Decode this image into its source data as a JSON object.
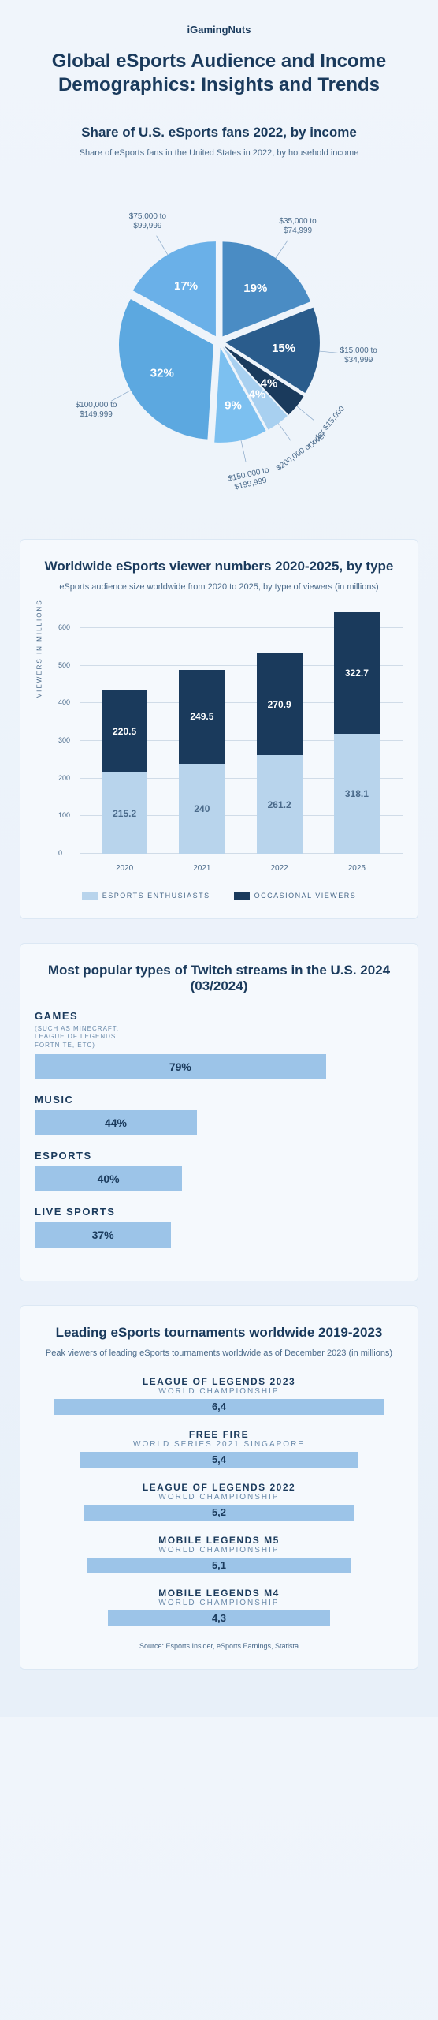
{
  "brand": "iGamingNuts",
  "main_title": "Global eSports Audience and Income Demographics: Insights and Trends",
  "pie": {
    "title": "Share of U.S. eSports fans 2022, by income",
    "subtitle": "Share of eSports fans in the United States in 2022, by household income",
    "slices": [
      {
        "value": 19,
        "label": "$35,000 to $74,999",
        "color": "#4a8cc4",
        "pct": "19%"
      },
      {
        "value": 15,
        "label": "$15,000 to $34,999",
        "color": "#2a5c8c",
        "pct": "15%"
      },
      {
        "value": 4,
        "label": "Under $15,000",
        "color": "#1a3a5c",
        "pct": "4%"
      },
      {
        "value": 4,
        "label": "$200,000 or over",
        "color": "#a8d0f0",
        "pct": "4%"
      },
      {
        "value": 9,
        "label": "$150,000 to $199,999",
        "color": "#7cc0f0",
        "pct": "9%"
      },
      {
        "value": 32,
        "label": "$100,000 to $149,999",
        "color": "#5ca8e0",
        "pct": "32%"
      },
      {
        "value": 17,
        "label": "$75,000 to $99,999",
        "color": "#6ab0e8",
        "pct": "17%"
      }
    ],
    "radius": 120,
    "explode": 8
  },
  "stacked": {
    "title": "Worldwide eSports viewer numbers 2020-2025, by type",
    "subtitle": "eSports audience size worldwide from 2020 to 2025, by type of viewers (in millions)",
    "y_label": "VIEWERS IN MILLIONS",
    "y_max": 650,
    "y_ticks": [
      0,
      100,
      200,
      300,
      400,
      500,
      600
    ],
    "categories": [
      "2020",
      "2021",
      "2022",
      "2025"
    ],
    "series": [
      {
        "name": "ESPORTS ENTHUSIASTS",
        "color": "#b8d4ec",
        "text": "#4a6a8a",
        "values": [
          215.2,
          240,
          261.2,
          318.1
        ]
      },
      {
        "name": "OCCASIONAL VIEWERS",
        "color": "#1a3a5c",
        "text": "#ffffff",
        "values": [
          220.5,
          249.5,
          270.9,
          322.7
        ]
      }
    ]
  },
  "twitch": {
    "title": "Most popular types of Twitch streams in the U.S. 2024 (03/2024)",
    "max": 100,
    "color": "#9cc4e8",
    "items": [
      {
        "label": "GAMES",
        "sub": "(SUCH AS MINECRAFT, LEAGUE OF LEGENDS, FORTNITE, ETC)",
        "value": 79,
        "pct": "79%"
      },
      {
        "label": "MUSIC",
        "sub": "",
        "value": 44,
        "pct": "44%"
      },
      {
        "label": "ESPORTS",
        "sub": "",
        "value": 40,
        "pct": "40%"
      },
      {
        "label": "LIVE SPORTS",
        "sub": "",
        "value": 37,
        "pct": "37%"
      }
    ]
  },
  "tournaments": {
    "title": "Leading eSports tournaments worldwide 2019-2023",
    "subtitle": "Peak viewers of leading eSports tournaments worldwide as of December 2023 (in millions)",
    "max": 6.4,
    "full_width": 420,
    "color": "#9cc4e8",
    "items": [
      {
        "name": "LEAGUE OF LEGENDS 2023",
        "sub": "WORLD CHAMPIONSHIP",
        "value": 6.4,
        "disp": "6,4"
      },
      {
        "name": "FREE FIRE",
        "sub": "WORLD SERIES 2021 SINGAPORE",
        "value": 5.4,
        "disp": "5,4"
      },
      {
        "name": "LEAGUE OF LEGENDS 2022",
        "sub": "WORLD CHAMPIONSHIP",
        "value": 5.2,
        "disp": "5,2"
      },
      {
        "name": "MOBILE LEGENDS M5",
        "sub": "WORLD CHAMPIONSHIP",
        "value": 5.1,
        "disp": "5,1"
      },
      {
        "name": "MOBILE LEGENDS M4",
        "sub": "WORLD CHAMPIONSHIP",
        "value": 4.3,
        "disp": "4,3"
      }
    ]
  },
  "source": "Source: Esports Insider, eSports Earnings, Statista"
}
